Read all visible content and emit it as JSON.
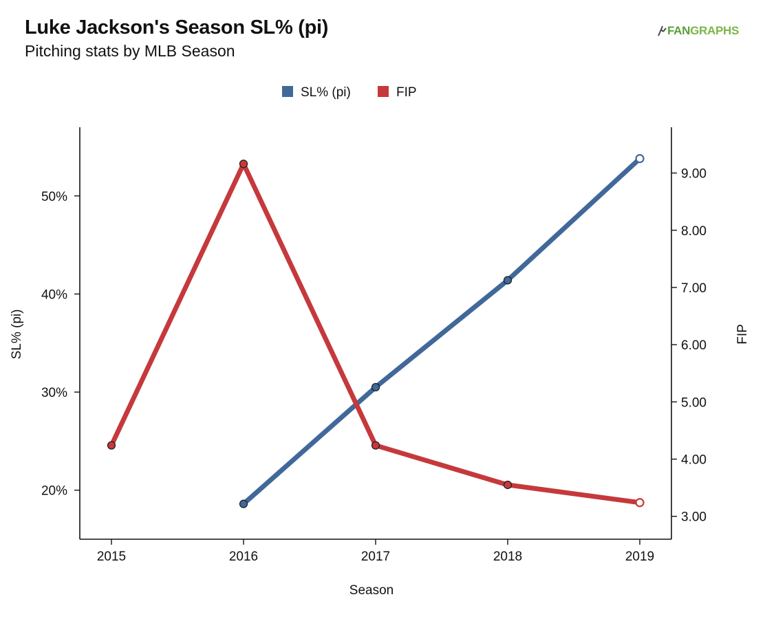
{
  "header": {
    "title": "Luke Jackson's Season SL% (pi)",
    "subtitle": "Pitching stats by MLB Season",
    "logo_fan": "FAN",
    "logo_graphs": "GRAPHS"
  },
  "chart_data": {
    "type": "line",
    "x": [
      2015,
      2016,
      2017,
      2018,
      2019
    ],
    "x_tick_labels": [
      "2015",
      "2016",
      "2017",
      "2018",
      "2019"
    ],
    "xlabel": "Season",
    "ylabel_left": "SL% (pi)",
    "ylabel_right": "FIP",
    "y_left_ticks": [
      20,
      30,
      40,
      50
    ],
    "y_left_tick_labels": [
      "20%",
      "30%",
      "40%",
      "50%"
    ],
    "y_left_lim": [
      15,
      57
    ],
    "y_right_ticks": [
      3,
      4,
      5,
      6,
      7,
      8,
      9
    ],
    "y_right_tick_labels": [
      "3.00",
      "4.00",
      "5.00",
      "6.00",
      "7.00",
      "8.00",
      "9.00"
    ],
    "y_right_lim": [
      2.6,
      9.8
    ],
    "legend_placement": "top-center",
    "grid": false,
    "series": [
      {
        "name": "SL% (pi)",
        "axis": "left",
        "color": "#41689a",
        "values": [
          null,
          18.6,
          30.5,
          41.4,
          53.8
        ],
        "open_last_marker": true
      },
      {
        "name": "FIP",
        "axis": "right",
        "color": "#c5393c",
        "values": [
          4.24,
          9.16,
          4.24,
          3.55,
          3.24
        ],
        "open_last_marker": true
      }
    ]
  }
}
